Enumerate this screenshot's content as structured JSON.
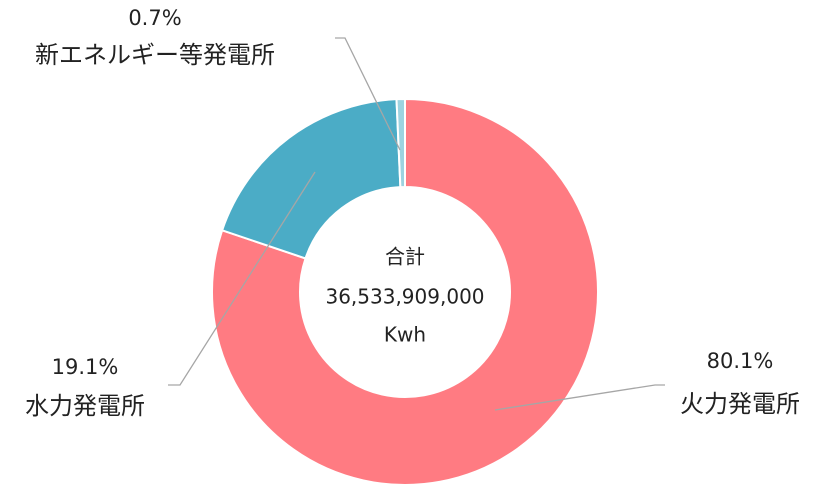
{
  "chart_data": {
    "type": "pie",
    "donut": true,
    "categories": [
      "火力発電所",
      "水力発電所",
      "新エネルギー等発電所"
    ],
    "values": [
      80.1,
      19.1,
      0.7
    ],
    "value_labels": [
      "80.1%",
      "19.1%",
      "0.7%"
    ],
    "colors": [
      "#ff7b82",
      "#4bacc6",
      "#9dd3e0"
    ],
    "center_text": [
      "合計",
      "36,533,909,000",
      "Kwh"
    ]
  }
}
